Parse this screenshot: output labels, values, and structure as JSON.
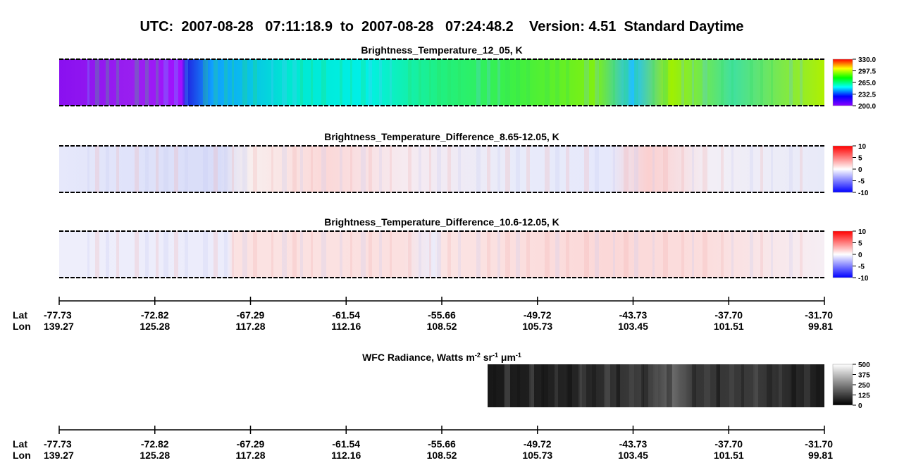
{
  "title": "UTC:  2007-08-28   07:11:18.9  to  2007-08-28   07:24:48.2    Version: 4.51  Standard Daytime",
  "panels": [
    {
      "title": "Brightness_Temperature_12_05, K",
      "colormap": "rainbow",
      "range": [
        200,
        330
      ],
      "ticks": [
        {
          "value": 330,
          "label": "330.0"
        },
        {
          "value": 297.5,
          "label": "297.5"
        },
        {
          "value": 265,
          "label": "265.0"
        },
        {
          "value": 232.5,
          "label": "232.5"
        },
        {
          "value": 200,
          "label": "200.0"
        }
      ]
    },
    {
      "title": "Brightness_Temperature_Difference_8.65-12.05, K",
      "colormap": "bwr",
      "range": [
        -10,
        10
      ],
      "ticks": [
        10,
        5,
        0,
        -5,
        -10
      ]
    },
    {
      "title": "Brightness_Temperature_Difference_10.6-12.05, K",
      "colormap": "bwr",
      "range": [
        -10,
        10
      ],
      "ticks": [
        10,
        5,
        0,
        -5,
        -10
      ]
    }
  ],
  "wfc": {
    "title": [
      "WFC Radiance, Watts m",
      "-2",
      " sr",
      "-1",
      " μm",
      "-1"
    ],
    "colormap": "gray",
    "range": [
      0,
      500
    ],
    "ticks": [
      500,
      375,
      250,
      125,
      0
    ]
  },
  "axis": {
    "lat_label": "Lat",
    "lon_label": "Lon",
    "lat": [
      "-77.73",
      "-72.82",
      "-67.29",
      "-61.54",
      "-55.66",
      "-49.72",
      "-43.73",
      "-37.70",
      "-31.70"
    ],
    "lon": [
      "139.27",
      "125.28",
      "117.28",
      "112.16",
      "108.52",
      "105.73",
      "103.45",
      "101.51",
      "99.81"
    ]
  }
}
